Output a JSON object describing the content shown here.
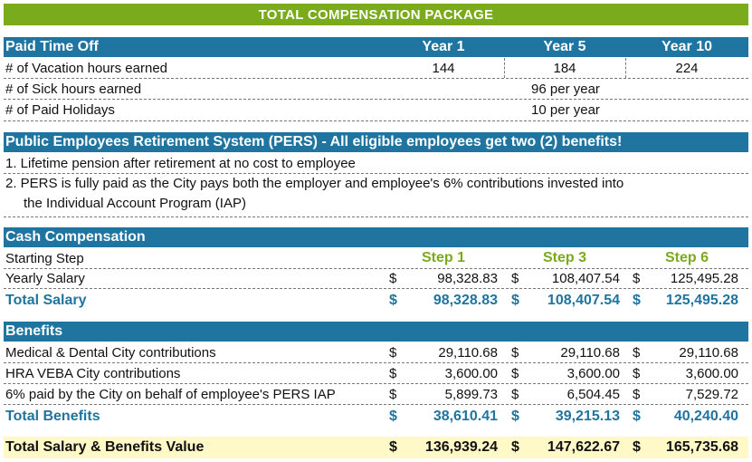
{
  "title": "TOTAL COMPENSATION PACKAGE",
  "pto": {
    "header": "Paid Time Off",
    "columns": [
      "Year 1",
      "Year 5",
      "Year 10"
    ],
    "rows": [
      {
        "label": "# of Vacation hours earned",
        "values": [
          "144",
          "184",
          "224"
        ]
      },
      {
        "label": "# of Sick hours earned",
        "value": "96 per year"
      },
      {
        "label": "# of Paid Holidays",
        "value": "10 per year"
      }
    ]
  },
  "pers": {
    "header": "Public Employees Retirement System (PERS) - All eligible employees get two (2) benefits!",
    "item1": "1. Lifetime pension after retirement at no cost to employee",
    "item2_line1": "2.  PERS is fully paid as the City pays both the employer and employee's 6% contributions invested into",
    "item2_line2": "the Individual Account Program (IAP)"
  },
  "cash": {
    "header": "Cash Compensation",
    "starting_step_label": "Starting Step",
    "steps": [
      "Step 1",
      "Step 3",
      "Step 6"
    ],
    "yearly_salary": {
      "label": "Yearly Salary",
      "currency": "$",
      "values": [
        "98,328.83",
        "108,407.54",
        "125,495.28"
      ]
    },
    "total_salary": {
      "label": "Total Salary",
      "currency": "$",
      "values": [
        "98,328.83",
        "108,407.54",
        "125,495.28"
      ]
    }
  },
  "benefits": {
    "header": "Benefits",
    "rows": [
      {
        "label": "Medical & Dental City contributions",
        "values": [
          "29,110.68",
          "29,110.68",
          "29,110.68"
        ]
      },
      {
        "label": "HRA VEBA City contributions",
        "values": [
          "3,600.00",
          "3,600.00",
          "3,600.00"
        ]
      },
      {
        "label": "6% paid by the City on behalf of employee's PERS IAP",
        "values": [
          "5,899.73",
          "6,504.45",
          "7,529.72"
        ]
      }
    ],
    "currency": "$",
    "total": {
      "label": "Total Benefits",
      "values": [
        "38,610.41",
        "39,215.13",
        "40,240.40"
      ]
    }
  },
  "grand_total": {
    "label": "Total Salary & Benefits Value",
    "currency": "$",
    "values": [
      "136,939.24",
      "147,622.67",
      "165,735.68"
    ]
  },
  "colors": {
    "green": "#7aab1d",
    "blue": "#1f74a0",
    "highlight": "#fff8c7"
  }
}
